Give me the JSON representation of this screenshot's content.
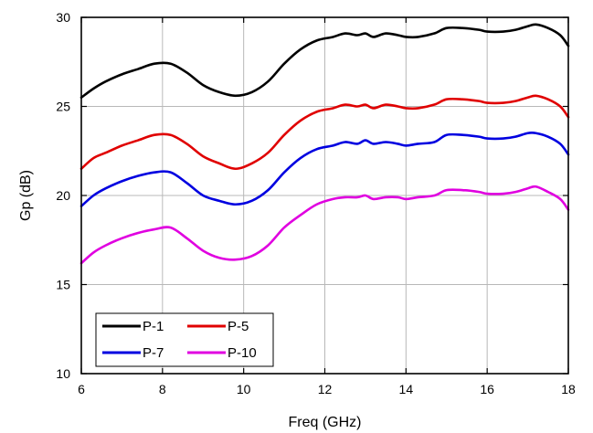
{
  "chart_data": {
    "type": "line",
    "xlabel": "Freq (GHz)",
    "ylabel": "Gp (dB)",
    "xlim": [
      6,
      18
    ],
    "ylim": [
      10,
      30
    ],
    "xticks": [
      6,
      8,
      10,
      12,
      14,
      16,
      18
    ],
    "yticks": [
      10,
      15,
      20,
      25,
      30
    ],
    "grid": true,
    "legend_position": "bottom-left",
    "series": [
      {
        "name": "P-1",
        "color": "#000000",
        "points": [
          [
            6.0,
            25.5
          ],
          [
            6.3,
            26.0
          ],
          [
            6.6,
            26.4
          ],
          [
            7.0,
            26.8
          ],
          [
            7.4,
            27.1
          ],
          [
            7.8,
            27.4
          ],
          [
            8.2,
            27.4
          ],
          [
            8.6,
            26.9
          ],
          [
            9.0,
            26.2
          ],
          [
            9.4,
            25.8
          ],
          [
            9.8,
            25.6
          ],
          [
            10.2,
            25.8
          ],
          [
            10.6,
            26.4
          ],
          [
            11.0,
            27.4
          ],
          [
            11.4,
            28.2
          ],
          [
            11.8,
            28.7
          ],
          [
            12.2,
            28.9
          ],
          [
            12.5,
            29.1
          ],
          [
            12.8,
            29.0
          ],
          [
            13.0,
            29.1
          ],
          [
            13.2,
            28.9
          ],
          [
            13.5,
            29.1
          ],
          [
            13.8,
            29.0
          ],
          [
            14.0,
            28.9
          ],
          [
            14.3,
            28.9
          ],
          [
            14.7,
            29.1
          ],
          [
            15.0,
            29.4
          ],
          [
            15.4,
            29.4
          ],
          [
            15.8,
            29.3
          ],
          [
            16.0,
            29.2
          ],
          [
            16.4,
            29.2
          ],
          [
            16.7,
            29.3
          ],
          [
            17.0,
            29.5
          ],
          [
            17.2,
            29.6
          ],
          [
            17.5,
            29.4
          ],
          [
            17.8,
            29.0
          ],
          [
            18.0,
            28.4
          ]
        ]
      },
      {
        "name": "P-5",
        "color": "#e00000",
        "points": [
          [
            6.0,
            21.5
          ],
          [
            6.3,
            22.1
          ],
          [
            6.6,
            22.4
          ],
          [
            7.0,
            22.8
          ],
          [
            7.4,
            23.1
          ],
          [
            7.8,
            23.4
          ],
          [
            8.2,
            23.4
          ],
          [
            8.6,
            22.9
          ],
          [
            9.0,
            22.2
          ],
          [
            9.4,
            21.8
          ],
          [
            9.8,
            21.5
          ],
          [
            10.2,
            21.8
          ],
          [
            10.6,
            22.4
          ],
          [
            11.0,
            23.4
          ],
          [
            11.4,
            24.2
          ],
          [
            11.8,
            24.7
          ],
          [
            12.2,
            24.9
          ],
          [
            12.5,
            25.1
          ],
          [
            12.8,
            25.0
          ],
          [
            13.0,
            25.1
          ],
          [
            13.2,
            24.9
          ],
          [
            13.5,
            25.1
          ],
          [
            13.8,
            25.0
          ],
          [
            14.0,
            24.9
          ],
          [
            14.3,
            24.9
          ],
          [
            14.7,
            25.1
          ],
          [
            15.0,
            25.4
          ],
          [
            15.4,
            25.4
          ],
          [
            15.8,
            25.3
          ],
          [
            16.0,
            25.2
          ],
          [
            16.4,
            25.2
          ],
          [
            16.7,
            25.3
          ],
          [
            17.0,
            25.5
          ],
          [
            17.2,
            25.6
          ],
          [
            17.5,
            25.4
          ],
          [
            17.8,
            25.0
          ],
          [
            18.0,
            24.4
          ]
        ]
      },
      {
        "name": "P-7",
        "color": "#0000e0",
        "points": [
          [
            6.0,
            19.4
          ],
          [
            6.3,
            20.0
          ],
          [
            6.6,
            20.4
          ],
          [
            7.0,
            20.8
          ],
          [
            7.4,
            21.1
          ],
          [
            7.8,
            21.3
          ],
          [
            8.2,
            21.3
          ],
          [
            8.6,
            20.7
          ],
          [
            9.0,
            20.0
          ],
          [
            9.4,
            19.7
          ],
          [
            9.8,
            19.5
          ],
          [
            10.2,
            19.7
          ],
          [
            10.6,
            20.3
          ],
          [
            11.0,
            21.3
          ],
          [
            11.4,
            22.1
          ],
          [
            11.8,
            22.6
          ],
          [
            12.2,
            22.8
          ],
          [
            12.5,
            23.0
          ],
          [
            12.8,
            22.9
          ],
          [
            13.0,
            23.1
          ],
          [
            13.2,
            22.9
          ],
          [
            13.5,
            23.0
          ],
          [
            13.8,
            22.9
          ],
          [
            14.0,
            22.8
          ],
          [
            14.3,
            22.9
          ],
          [
            14.7,
            23.0
          ],
          [
            15.0,
            23.4
          ],
          [
            15.4,
            23.4
          ],
          [
            15.8,
            23.3
          ],
          [
            16.0,
            23.2
          ],
          [
            16.4,
            23.2
          ],
          [
            16.7,
            23.3
          ],
          [
            17.0,
            23.5
          ],
          [
            17.2,
            23.5
          ],
          [
            17.5,
            23.3
          ],
          [
            17.8,
            22.9
          ],
          [
            18.0,
            22.3
          ]
        ]
      },
      {
        "name": "P-10",
        "color": "#e000e0",
        "points": [
          [
            6.0,
            16.2
          ],
          [
            6.3,
            16.8
          ],
          [
            6.6,
            17.2
          ],
          [
            7.0,
            17.6
          ],
          [
            7.4,
            17.9
          ],
          [
            7.8,
            18.1
          ],
          [
            8.2,
            18.2
          ],
          [
            8.6,
            17.6
          ],
          [
            9.0,
            16.9
          ],
          [
            9.4,
            16.5
          ],
          [
            9.8,
            16.4
          ],
          [
            10.2,
            16.6
          ],
          [
            10.6,
            17.2
          ],
          [
            11.0,
            18.2
          ],
          [
            11.4,
            18.9
          ],
          [
            11.8,
            19.5
          ],
          [
            12.2,
            19.8
          ],
          [
            12.5,
            19.9
          ],
          [
            12.8,
            19.9
          ],
          [
            13.0,
            20.0
          ],
          [
            13.2,
            19.8
          ],
          [
            13.5,
            19.9
          ],
          [
            13.8,
            19.9
          ],
          [
            14.0,
            19.8
          ],
          [
            14.3,
            19.9
          ],
          [
            14.7,
            20.0
          ],
          [
            15.0,
            20.3
          ],
          [
            15.4,
            20.3
          ],
          [
            15.8,
            20.2
          ],
          [
            16.0,
            20.1
          ],
          [
            16.4,
            20.1
          ],
          [
            16.7,
            20.2
          ],
          [
            17.0,
            20.4
          ],
          [
            17.2,
            20.5
          ],
          [
            17.5,
            20.2
          ],
          [
            17.8,
            19.8
          ],
          [
            18.0,
            19.2
          ]
        ]
      }
    ]
  }
}
